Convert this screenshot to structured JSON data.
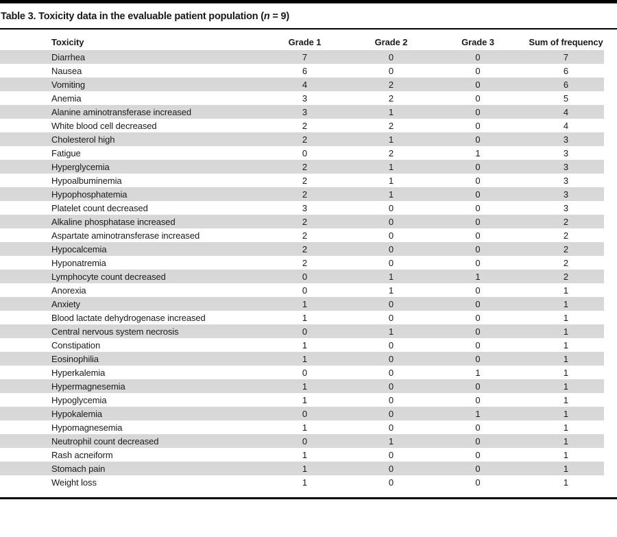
{
  "title": {
    "prefix": "Table 3. Toxicity data in the evaluable patient population (",
    "italic": "n",
    "suffix": " = 9)"
  },
  "colors": {
    "row_stripe": "#d8d8d8",
    "rule": "#000000",
    "text": "#1a1a1a"
  },
  "table": {
    "columns": [
      "Toxicity",
      "Grade 1",
      "Grade 2",
      "Grade 3",
      "Sum of frequency"
    ],
    "rows": [
      [
        "Diarrhea",
        "7",
        "0",
        "0",
        "7"
      ],
      [
        "Nausea",
        "6",
        "0",
        "0",
        "6"
      ],
      [
        "Vomiting",
        "4",
        "2",
        "0",
        "6"
      ],
      [
        "Anemia",
        "3",
        "2",
        "0",
        "5"
      ],
      [
        "Alanine aminotransferase increased",
        "3",
        "1",
        "0",
        "4"
      ],
      [
        "White blood cell decreased",
        "2",
        "2",
        "0",
        "4"
      ],
      [
        "Cholesterol high",
        "2",
        "1",
        "0",
        "3"
      ],
      [
        "Fatigue",
        "0",
        "2",
        "1",
        "3"
      ],
      [
        "Hyperglycemia",
        "2",
        "1",
        "0",
        "3"
      ],
      [
        "Hypoalbuminemia",
        "2",
        "1",
        "0",
        "3"
      ],
      [
        "Hypophosphatemia",
        "2",
        "1",
        "0",
        "3"
      ],
      [
        "Platelet count decreased",
        "3",
        "0",
        "0",
        "3"
      ],
      [
        "Alkaline phosphatase increased",
        "2",
        "0",
        "0",
        "2"
      ],
      [
        "Aspartate aminotransferase increased",
        "2",
        "0",
        "0",
        "2"
      ],
      [
        "Hypocalcemia",
        "2",
        "0",
        "0",
        "2"
      ],
      [
        "Hyponatremia",
        "2",
        "0",
        "0",
        "2"
      ],
      [
        "Lymphocyte count decreased",
        "0",
        "1",
        "1",
        "2"
      ],
      [
        "Anorexia",
        "0",
        "1",
        "0",
        "1"
      ],
      [
        "Anxiety",
        "1",
        "0",
        "0",
        "1"
      ],
      [
        "Blood lactate dehydrogenase increased",
        "1",
        "0",
        "0",
        "1"
      ],
      [
        "Central nervous system necrosis",
        "0",
        "1",
        "0",
        "1"
      ],
      [
        "Constipation",
        "1",
        "0",
        "0",
        "1"
      ],
      [
        "Eosinophilia",
        "1",
        "0",
        "0",
        "1"
      ],
      [
        "Hyperkalemia",
        "0",
        "0",
        "1",
        "1"
      ],
      [
        "Hypermagnesemia",
        "1",
        "0",
        "0",
        "1"
      ],
      [
        "Hypoglycemia",
        "1",
        "0",
        "0",
        "1"
      ],
      [
        "Hypokalemia",
        "0",
        "0",
        "1",
        "1"
      ],
      [
        "Hypomagnesemia",
        "1",
        "0",
        "0",
        "1"
      ],
      [
        "Neutrophil count decreased",
        "0",
        "1",
        "0",
        "1"
      ],
      [
        "Rash acneiform",
        "1",
        "0",
        "0",
        "1"
      ],
      [
        "Stomach pain",
        "1",
        "0",
        "0",
        "1"
      ],
      [
        "Weight loss",
        "1",
        "0",
        "0",
        "1"
      ]
    ]
  }
}
